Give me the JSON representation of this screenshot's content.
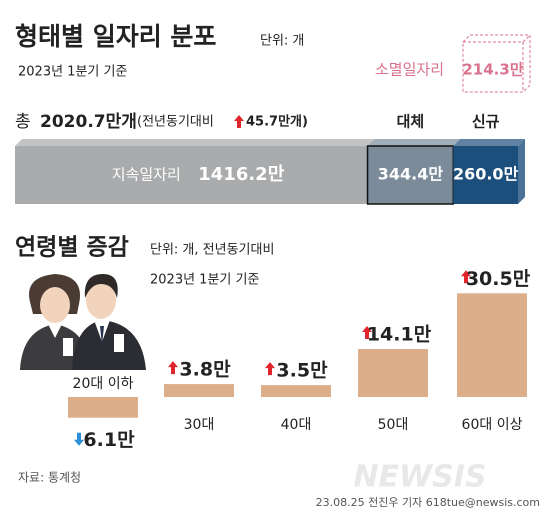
{
  "header": {
    "title": "형태별 일자리 분포",
    "unit": "단위: 개",
    "period": "2023년 1분기 기준"
  },
  "chart_data": [
    {
      "type": "stacked-hbar",
      "total_prefix": "총",
      "total": 2020.7,
      "total_label": "2020.7만개",
      "change_prefix": "(전년동기대비",
      "change": 45.7,
      "change_label": "45.7만개)",
      "categories": [
        "지속일자리",
        "대체",
        "신규"
      ],
      "values": [
        1416.2,
        344.4,
        260.0
      ],
      "value_labels": [
        "1416.2만",
        "344.4만",
        "260.0만"
      ],
      "colors": [
        "#a9abad",
        "#7b8b99",
        "#1d4f7c"
      ],
      "extra": {
        "name": "소멸일자리",
        "value": 214.3,
        "value_label": "214.3만",
        "color": "#d9728e"
      }
    },
    {
      "type": "bar",
      "title": "연령별 증감",
      "subtitle": "단위: 개, 전년동기대비",
      "period": "2023년 1분기 기준",
      "categories": [
        "20대 이하",
        "30대",
        "40대",
        "50대",
        "60대 이상"
      ],
      "values": [
        -6.1,
        3.8,
        3.5,
        14.1,
        30.5
      ],
      "value_labels": [
        "6.1만",
        "3.8만",
        "3.5만",
        "14.1만",
        "30.5만"
      ],
      "color": "#dcae89"
    }
  ],
  "footer": {
    "source": "자료: 통계청",
    "credit": "23.08.25 전진우 기자 618tue@newsis.com",
    "watermark": "NEWSIS"
  }
}
